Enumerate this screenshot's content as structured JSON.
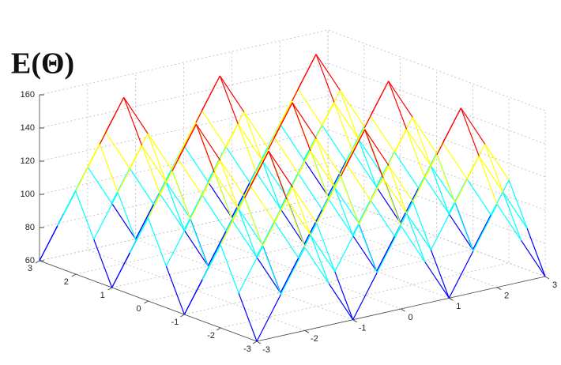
{
  "chart_data": {
    "type": "surface",
    "title": "E(Θ)",
    "x": [
      -3,
      -2.5,
      -2,
      -1.5,
      -1,
      -0.5,
      0,
      0.5,
      1,
      1.5,
      2,
      2.5,
      3
    ],
    "y": [
      -3,
      -2.5,
      -2,
      -1.5,
      -1,
      -0.5,
      0,
      0.5,
      1,
      1.5,
      2,
      2.5,
      3
    ],
    "z": [
      [
        60,
        85,
        110,
        85,
        60,
        85,
        110,
        85,
        60,
        85,
        110,
        85,
        60
      ],
      [
        85,
        110,
        135,
        110,
        85,
        110,
        135,
        110,
        85,
        110,
        135,
        110,
        85
      ],
      [
        110,
        135,
        160,
        135,
        110,
        135,
        160,
        135,
        110,
        135,
        160,
        135,
        110
      ],
      [
        85,
        110,
        135,
        110,
        85,
        110,
        135,
        110,
        85,
        110,
        135,
        110,
        85
      ],
      [
        60,
        85,
        110,
        85,
        60,
        85,
        110,
        85,
        60,
        85,
        110,
        85,
        60
      ],
      [
        85,
        110,
        135,
        110,
        85,
        110,
        135,
        110,
        85,
        110,
        135,
        110,
        85
      ],
      [
        110,
        135,
        160,
        135,
        110,
        135,
        160,
        135,
        110,
        135,
        160,
        135,
        110
      ],
      [
        85,
        110,
        135,
        110,
        85,
        110,
        135,
        110,
        85,
        110,
        135,
        110,
        85
      ],
      [
        60,
        85,
        110,
        85,
        60,
        85,
        110,
        85,
        60,
        85,
        110,
        85,
        60
      ],
      [
        85,
        110,
        135,
        110,
        85,
        110,
        135,
        110,
        85,
        110,
        135,
        110,
        85
      ],
      [
        110,
        135,
        160,
        135,
        110,
        135,
        160,
        135,
        110,
        135,
        160,
        135,
        110
      ],
      [
        85,
        110,
        135,
        110,
        85,
        110,
        135,
        110,
        85,
        110,
        135,
        110,
        85
      ],
      [
        60,
        85,
        110,
        85,
        60,
        85,
        110,
        85,
        60,
        85,
        110,
        85,
        60
      ]
    ],
    "colormap": "jet",
    "xlim": [
      -3,
      3
    ],
    "ylim": [
      -3,
      3
    ],
    "zlim": [
      60,
      160
    ],
    "xticks": [
      -3,
      -2,
      -1,
      0,
      1,
      2,
      3
    ],
    "yticks": [
      -3,
      -2,
      -1,
      0,
      1,
      2,
      3
    ],
    "zticks": [
      60,
      80,
      100,
      120,
      140,
      160
    ],
    "grid": true
  }
}
